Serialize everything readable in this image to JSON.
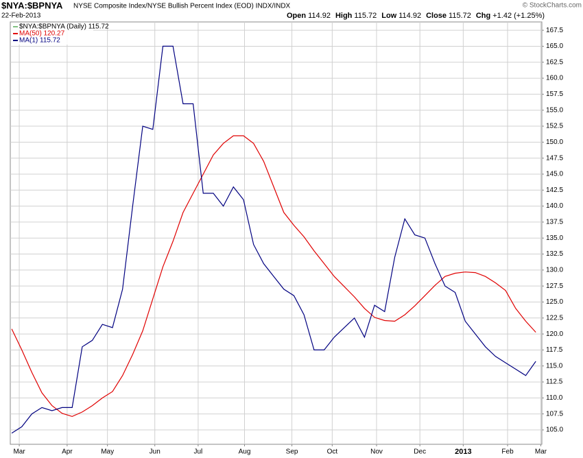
{
  "chart_data": {
    "type": "line",
    "title": "$NYA:$BPNYA",
    "subtitle": "NYSE Composite Index/NYSE Bullish Percent Index (EOD)  INDX/INDX",
    "date": "22-Feb-2013",
    "copyright": "© StockCharts.com",
    "quote": [
      {
        "label": "Open",
        "value": "114.92"
      },
      {
        "label": "High",
        "value": "115.72"
      },
      {
        "label": "Low",
        "value": "114.92"
      },
      {
        "label": "Close",
        "value": "115.72"
      },
      {
        "label": "Chg",
        "value": "+1.42 (+1.25%)"
      }
    ],
    "price_legend": "$NYA:$BPNYA (Daily) 115.72",
    "x": [
      0,
      1,
      2,
      3,
      4,
      5,
      6,
      7,
      8,
      9,
      10,
      11,
      12,
      13,
      14,
      15,
      16,
      17,
      18,
      19,
      20,
      21,
      22,
      23,
      24,
      25,
      26,
      27,
      28,
      29,
      30,
      31,
      32,
      33,
      34,
      35,
      36,
      37,
      38,
      39,
      40,
      41,
      42,
      43,
      44,
      45,
      46,
      47,
      48,
      49,
      50,
      51,
      52
    ],
    "series": [
      {
        "name": "MA(50) 120.27",
        "color": "#e00000",
        "values": [
          120.8,
          117.5,
          114,
          110.8,
          108.8,
          107.6,
          107.1,
          107.8,
          108.8,
          110,
          111,
          113.5,
          116.8,
          120.5,
          125.5,
          130.5,
          134.5,
          139,
          142,
          145,
          148,
          149.8,
          151,
          151,
          149.8,
          147,
          143,
          139,
          137,
          135.2,
          133,
          131,
          129,
          127.4,
          125.8,
          124,
          122.6,
          122.1,
          122,
          123,
          124.4,
          126,
          127.6,
          129,
          129.5,
          129.7,
          129.6,
          129,
          128,
          126.8,
          124,
          122,
          120.27
        ]
      },
      {
        "name": "MA(1) 115.72",
        "color": "#000080",
        "values": [
          104.5,
          105.5,
          107.5,
          108.5,
          108,
          108.5,
          108.5,
          118,
          119,
          121.5,
          121,
          127,
          140,
          152.5,
          152,
          165,
          165,
          156,
          156,
          142,
          142,
          140,
          143,
          141,
          134,
          131,
          129,
          127,
          126,
          123,
          117.5,
          117.5,
          119.5,
          121,
          122.5,
          119.5,
          124.5,
          123.5,
          132,
          138,
          135.5,
          135,
          131,
          127.5,
          126.5,
          122,
          120,
          118,
          116.5,
          115.5,
          114.5,
          113.5,
          115.72
        ]
      }
    ],
    "xlim": [
      -0.14,
      52.6
    ],
    "xticks": [
      {
        "value": 0.75,
        "label": "Mar"
      },
      {
        "value": 5.5,
        "label": "Apr"
      },
      {
        "value": 9.5,
        "label": "May"
      },
      {
        "value": 14.2,
        "label": "Jun"
      },
      {
        "value": 18.5,
        "label": "Jul"
      },
      {
        "value": 23.1,
        "label": "Aug"
      },
      {
        "value": 27.8,
        "label": "Sep"
      },
      {
        "value": 31.8,
        "label": "Oct"
      },
      {
        "value": 36.2,
        "label": "Nov"
      },
      {
        "value": 40.5,
        "label": "Dec"
      },
      {
        "value": 44.8,
        "label": "2013"
      },
      {
        "value": 49.2,
        "label": "Feb"
      },
      {
        "value": 52.5,
        "label": "Mar"
      }
    ],
    "ylim": [
      102.75,
      168.8
    ],
    "yticks": [
      {
        "value": 105,
        "label": "105.0"
      },
      {
        "value": 107.5,
        "label": "107.5"
      },
      {
        "value": 110,
        "label": "110.0"
      },
      {
        "value": 112.5,
        "label": "112.5"
      },
      {
        "value": 115,
        "label": "115.0"
      },
      {
        "value": 117.5,
        "label": "117.5"
      },
      {
        "value": 120,
        "label": "120.0"
      },
      {
        "value": 122.5,
        "label": "122.5"
      },
      {
        "value": 125,
        "label": "125.0"
      },
      {
        "value": 127.5,
        "label": "127.5"
      },
      {
        "value": 130,
        "label": "130.0"
      },
      {
        "value": 132.5,
        "label": "132.5"
      },
      {
        "value": 135,
        "label": "135.0"
      },
      {
        "value": 137.5,
        "label": "137.5"
      },
      {
        "value": 140,
        "label": "140.0"
      },
      {
        "value": 142.5,
        "label": "142.5"
      },
      {
        "value": 145,
        "label": "145.0"
      },
      {
        "value": 147.5,
        "label": "147.5"
      },
      {
        "value": 150,
        "label": "150.0"
      },
      {
        "value": 152.5,
        "label": "152.5"
      },
      {
        "value": 155,
        "label": "155.0"
      },
      {
        "value": 157.5,
        "label": "157.5"
      },
      {
        "value": 160,
        "label": "160.0"
      },
      {
        "value": 162.5,
        "label": "162.5"
      },
      {
        "value": 165,
        "label": "165.0"
      },
      {
        "value": 167.5,
        "label": "167.5"
      }
    ],
    "grid": true
  }
}
